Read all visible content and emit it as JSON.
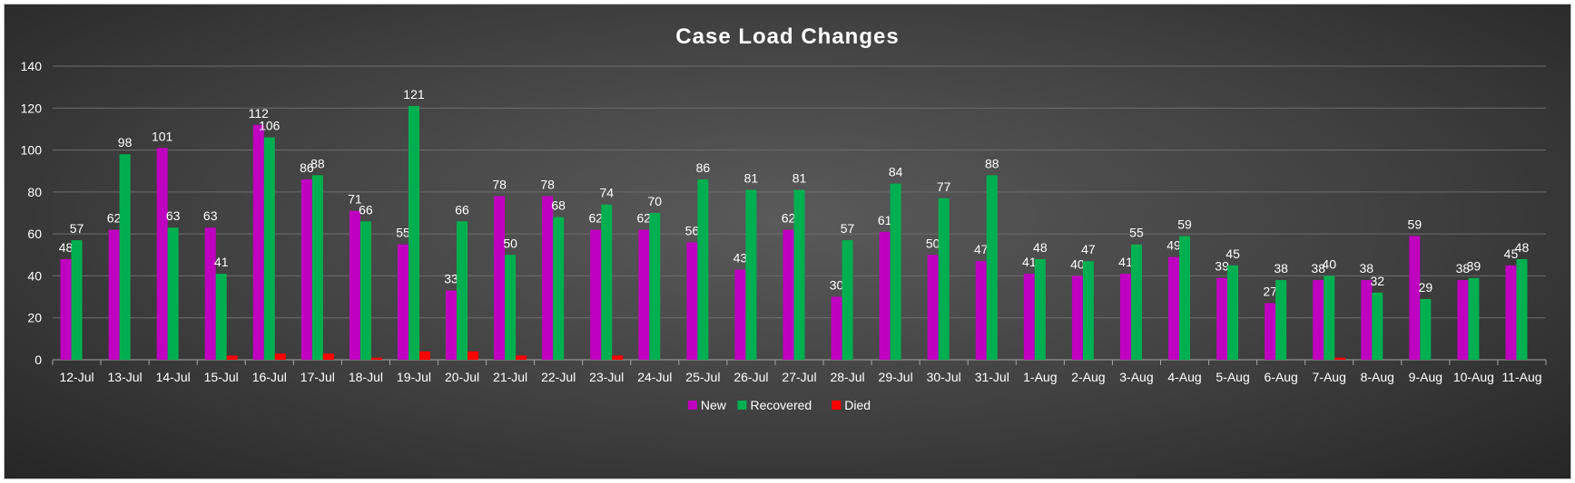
{
  "chart_data": {
    "type": "bar",
    "title": "Case Load Changes",
    "xlabel": "",
    "ylabel": "",
    "ylim": [
      0,
      140
    ],
    "yticks": [
      0,
      20,
      40,
      60,
      80,
      100,
      120,
      140
    ],
    "grid": true,
    "legend_position": "bottom",
    "categories": [
      "12-Jul",
      "13-Jul",
      "14-Jul",
      "15-Jul",
      "16-Jul",
      "17-Jul",
      "18-Jul",
      "19-Jul",
      "20-Jul",
      "21-Jul",
      "22-Jul",
      "23-Jul",
      "24-Jul",
      "25-Jul",
      "26-Jul",
      "27-Jul",
      "28-Jul",
      "29-Jul",
      "30-Jul",
      "31-Jul",
      "1-Aug",
      "2-Aug",
      "3-Aug",
      "4-Aug",
      "5-Aug",
      "6-Aug",
      "7-Aug",
      "8-Aug",
      "9-Aug",
      "10-Aug",
      "11-Aug"
    ],
    "series": [
      {
        "name": "New",
        "color": "#c000c0",
        "labels": true,
        "values": [
          48,
          62,
          101,
          63,
          112,
          86,
          71,
          55,
          33,
          78,
          78,
          62,
          62,
          56,
          43,
          62,
          30,
          61,
          50,
          47,
          41,
          40,
          41,
          49,
          39,
          27,
          38,
          38,
          59,
          38,
          45
        ]
      },
      {
        "name": "Recovered",
        "color": "#00b050",
        "labels": true,
        "values": [
          57,
          98,
          63,
          41,
          106,
          88,
          66,
          121,
          66,
          50,
          68,
          74,
          70,
          86,
          81,
          81,
          57,
          84,
          77,
          88,
          48,
          47,
          55,
          59,
          45,
          38,
          40,
          32,
          29,
          39,
          48
        ]
      },
      {
        "name": "Died",
        "color": "#ff0000",
        "labels": false,
        "values": [
          0,
          0,
          0,
          2,
          3,
          3,
          1,
          4,
          4,
          2,
          0,
          2,
          0,
          0,
          0,
          0,
          0,
          0,
          0,
          0,
          0,
          0,
          0,
          0,
          0,
          0,
          1,
          0,
          0,
          0,
          0
        ]
      }
    ]
  }
}
